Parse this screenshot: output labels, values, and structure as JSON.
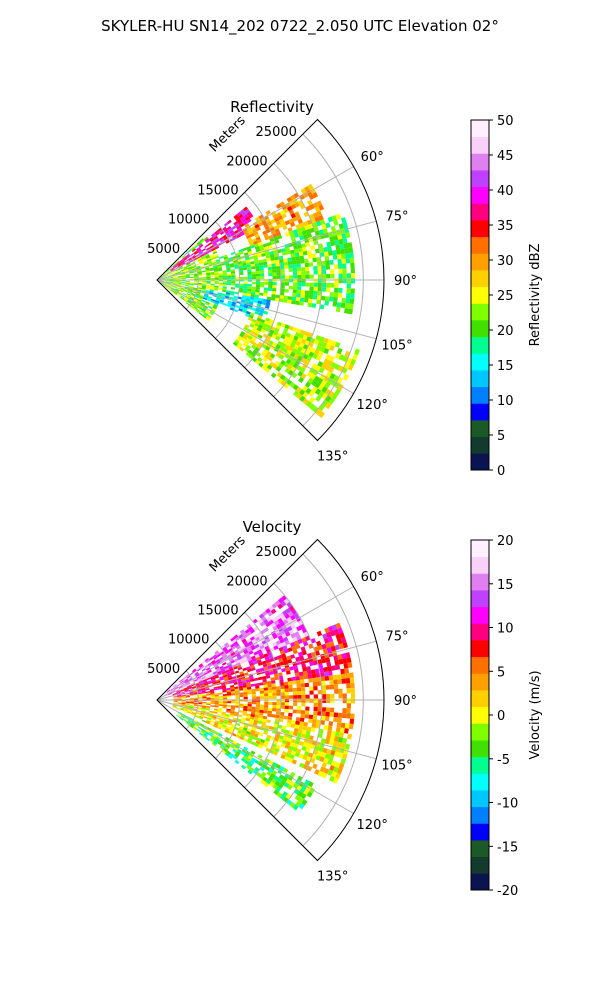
{
  "figure": {
    "suptitle": "SKYLER-HU  SN14_202  0722_2.050 UTC Elevation 02°"
  },
  "chart_data": [
    {
      "type": "heatmap",
      "projection": "polar-sector",
      "title": "Reflectivity",
      "radial_label": "Meters",
      "radial_ticks": [
        5000,
        10000,
        15000,
        20000,
        25000
      ],
      "radial_range": [
        0,
        27500
      ],
      "azimuth_range_deg": [
        45,
        135
      ],
      "azimuth_ticks": [
        "60°",
        "75°",
        "90°",
        "105°",
        "120°",
        "135°"
      ],
      "azimuth_tick_values": [
        60,
        75,
        90,
        105,
        120,
        135
      ],
      "grid": true,
      "colorbar": {
        "label": "Reflectivity dBZ",
        "min": 0,
        "max": 50,
        "ticks": [
          0,
          5,
          10,
          15,
          20,
          25,
          30,
          35,
          40,
          45,
          50
        ],
        "colors": [
          "#0a1450",
          "#123a2e",
          "#1b5a26",
          "#0000ff",
          "#0080ff",
          "#00c8ff",
          "#00ffff",
          "#00ff90",
          "#40e000",
          "#80ff00",
          "#ffff00",
          "#ffd000",
          "#ffa000",
          "#ff7000",
          "#ff0000",
          "#ff0080",
          "#ff00ff",
          "#c040ff",
          "#e080f0",
          "#f8d0f8",
          "#fff0ff"
        ]
      },
      "regions": [
        {
          "az": [
            47,
            128
          ],
          "r": [
            0,
            8000
          ],
          "value": 22
        },
        {
          "az": [
            50,
            62
          ],
          "r": [
            2000,
            14000
          ],
          "value": 38
        },
        {
          "az": [
            58,
            72
          ],
          "r": [
            12000,
            22000
          ],
          "value": 30
        },
        {
          "az": [
            70,
            100
          ],
          "r": [
            8000,
            24000
          ],
          "value": 21
        },
        {
          "az": [
            100,
            112
          ],
          "r": [
            6000,
            14000
          ],
          "value": 14
        },
        {
          "az": [
            108,
            130
          ],
          "r": [
            12000,
            26000
          ],
          "value": 24
        }
      ]
    },
    {
      "type": "heatmap",
      "projection": "polar-sector",
      "title": "Velocity",
      "radial_label": "Meters",
      "radial_ticks": [
        5000,
        10000,
        15000,
        20000,
        25000
      ],
      "radial_range": [
        0,
        27500
      ],
      "azimuth_range_deg": [
        45,
        135
      ],
      "azimuth_ticks": [
        "60°",
        "75°",
        "90°",
        "105°",
        "120°",
        "135°"
      ],
      "azimuth_tick_values": [
        60,
        75,
        90,
        105,
        120,
        135
      ],
      "grid": true,
      "colorbar": {
        "label": "Velocity (m/s)",
        "min": -20,
        "max": 20,
        "ticks": [
          -20,
          -15,
          -10,
          -5,
          0,
          5,
          10,
          15,
          20
        ],
        "colors": [
          "#0a1450",
          "#123a2e",
          "#1b5a26",
          "#0000ff",
          "#0080ff",
          "#00c8ff",
          "#00ffff",
          "#00ff90",
          "#40e000",
          "#80ff00",
          "#ffff00",
          "#ffd000",
          "#ffa000",
          "#ff7000",
          "#ff0000",
          "#ff0080",
          "#ff00ff",
          "#c040ff",
          "#e080f0",
          "#f8d0f8",
          "#fff0ff"
        ]
      },
      "regions": [
        {
          "az": [
            50,
            66
          ],
          "r": [
            1000,
            20000
          ],
          "value": 14
        },
        {
          "az": [
            66,
            82
          ],
          "r": [
            2000,
            24000
          ],
          "value": 9
        },
        {
          "az": [
            82,
            100
          ],
          "r": [
            2000,
            24000
          ],
          "value": 4
        },
        {
          "az": [
            100,
            115
          ],
          "r": [
            2000,
            24000
          ],
          "value": 1
        },
        {
          "az": [
            118,
            128
          ],
          "r": [
            3000,
            22000
          ],
          "value": -4
        }
      ]
    }
  ]
}
